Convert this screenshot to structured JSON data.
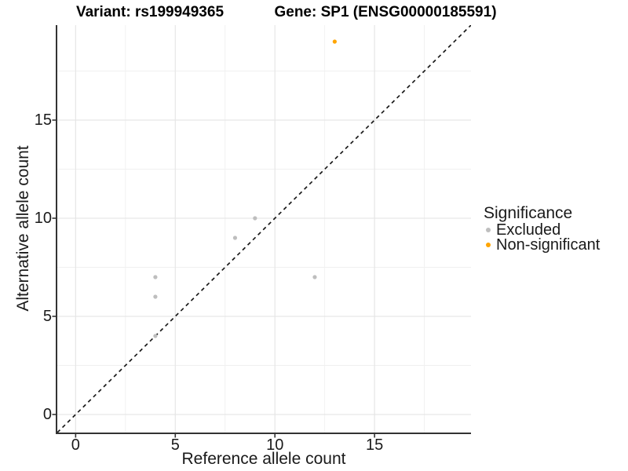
{
  "titles": {
    "variant": "Variant: rs199949365",
    "gene": "Gene: SP1 (ENSG00000185591)"
  },
  "chart_data": {
    "type": "scatter",
    "xlabel": "Reference allele count",
    "ylabel": "Alternative allele count",
    "xlim": [
      -0.92,
      19.84
    ],
    "ylim": [
      -0.92,
      19.84
    ],
    "x_major_ticks": [
      0,
      5,
      10,
      15
    ],
    "y_major_ticks": [
      0,
      5,
      10,
      15
    ],
    "x_minor_ticks": [
      2.5,
      7.5,
      12.5,
      17.5
    ],
    "y_minor_ticks": [
      2.5,
      7.5,
      12.5,
      17.5
    ],
    "grid": true,
    "legend_position": "right",
    "identity_line": {
      "style": "dashed",
      "from": [
        -0.92,
        -0.92
      ],
      "to": [
        19.84,
        19.84
      ],
      "color": "#1A1A1A"
    },
    "series": [
      {
        "name": "Excluded",
        "color": "#BEBEBE",
        "points": [
          [
            4,
            4
          ],
          [
            4,
            6
          ],
          [
            4,
            7
          ],
          [
            8,
            9
          ],
          [
            9,
            10
          ],
          [
            12,
            7
          ]
        ]
      },
      {
        "name": "Non-significant",
        "color": "#FFA500",
        "points": [
          [
            13,
            19
          ]
        ]
      }
    ]
  },
  "legend": {
    "title": "Significance",
    "items": [
      {
        "label": "Excluded",
        "color": "#BEBEBE"
      },
      {
        "label": "Non-significant",
        "color": "#FFA500"
      }
    ]
  },
  "colors": {
    "background": "#FFFFFF",
    "grid_major": "#E6E6E6",
    "grid_minor": "#F0F0F0",
    "axis_line": "#333333",
    "tick_mark": "#333333",
    "point_excluded": "#BEBEBE",
    "point_non_significant": "#FFA500",
    "text": "#1A1A1A"
  }
}
